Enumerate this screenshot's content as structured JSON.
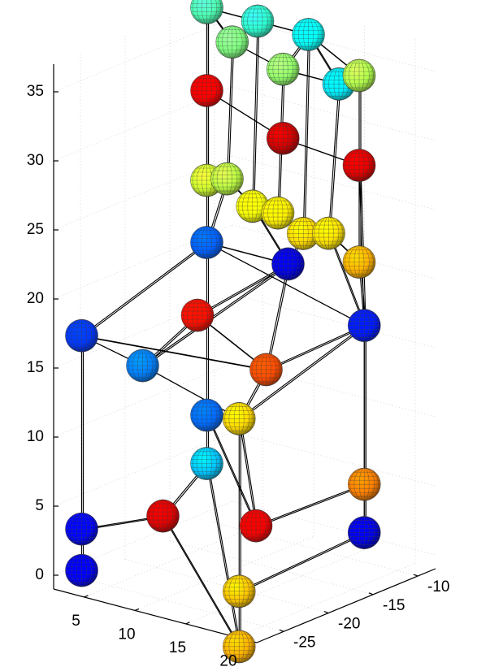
{
  "chart_data": {
    "type": "scatter3d",
    "title": "",
    "xlabel": "",
    "ylabel": "",
    "zlabel": "",
    "xlim": [
      2,
      22
    ],
    "ylim": [
      -28,
      -8
    ],
    "zlim": [
      -1,
      37
    ],
    "x_ticks": [
      "5",
      "10",
      "15",
      "20"
    ],
    "y_ticks": [
      "-25",
      "-20",
      "-15",
      "-10"
    ],
    "z_ticks": [
      "0",
      "5",
      "10",
      "15",
      "20",
      "25",
      "30",
      "35"
    ],
    "grid": true,
    "colormap": "jet",
    "marker": "sphere",
    "points": [
      {
        "x": 3,
        "y": -26,
        "z": 0,
        "c": 0.12
      },
      {
        "x": 3,
        "y": -26,
        "z": 3,
        "c": 0.13
      },
      {
        "x": 3,
        "y": -26,
        "z": 17,
        "c": 0.18
      },
      {
        "x": 11,
        "y": -26,
        "z": 5.5,
        "c": 0.9
      },
      {
        "x": 18.5,
        "y": -26,
        "z": -2.5,
        "c": 0.7
      },
      {
        "x": 18.5,
        "y": -26,
        "z": 1.5,
        "c": 0.68
      },
      {
        "x": 18.5,
        "y": -26,
        "z": 14,
        "c": 0.66
      },
      {
        "x": 9,
        "y": -26,
        "z": 16,
        "c": 0.25
      },
      {
        "x": 10,
        "y": -21,
        "z": 18.5,
        "c": 0.86
      },
      {
        "x": 3,
        "y": -12,
        "z": 20,
        "c": 0.22
      },
      {
        "x": 3,
        "y": -12,
        "z": 7.5,
        "c": 0.23
      },
      {
        "x": 3,
        "y": -12,
        "z": 4,
        "c": 0.32
      },
      {
        "x": 18.5,
        "y": -12,
        "z": 2,
        "c": 0.1
      },
      {
        "x": 18.5,
        "y": -12,
        "z": 5.5,
        "c": 0.75
      },
      {
        "x": 18.5,
        "y": -12,
        "z": 17,
        "c": 0.15
      },
      {
        "x": 15,
        "y": -19,
        "z": 15,
        "c": 0.8
      },
      {
        "x": 11,
        "y": -12,
        "z": 20,
        "c": 0.1
      },
      {
        "x": 14,
        "y": -19,
        "z": 3.5,
        "c": 0.88
      },
      {
        "x": 3,
        "y": -12,
        "z": 37,
        "c": 0.45
      },
      {
        "x": 8,
        "y": -12,
        "z": 37,
        "c": 0.42
      },
      {
        "x": 13,
        "y": -12,
        "z": 37,
        "c": 0.38
      },
      {
        "x": 18,
        "y": -12,
        "z": 35,
        "c": 0.55
      },
      {
        "x": 5.5,
        "y": -12,
        "z": 35,
        "c": 0.5
      },
      {
        "x": 10.5,
        "y": -12,
        "z": 34,
        "c": 0.52
      },
      {
        "x": 16,
        "y": -12,
        "z": 34,
        "c": 0.36
      },
      {
        "x": 3,
        "y": -12,
        "z": 31,
        "c": 0.88
      },
      {
        "x": 10.5,
        "y": -12,
        "z": 29,
        "c": 0.92
      },
      {
        "x": 18,
        "y": -12,
        "z": 28.5,
        "c": 0.9
      },
      {
        "x": 3,
        "y": -12,
        "z": 24.5,
        "c": 0.58
      },
      {
        "x": 5,
        "y": -12,
        "z": 25,
        "c": 0.56
      },
      {
        "x": 7.5,
        "y": -12,
        "z": 23.5,
        "c": 0.62
      },
      {
        "x": 10,
        "y": -12,
        "z": 23.5,
        "c": 0.64
      },
      {
        "x": 12.5,
        "y": -12,
        "z": 22.5,
        "c": 0.66
      },
      {
        "x": 15,
        "y": -12,
        "z": 23,
        "c": 0.65
      },
      {
        "x": 18,
        "y": -12,
        "z": 21.5,
        "c": 0.7
      }
    ],
    "edges": [
      [
        0,
        2
      ],
      [
        1,
        2
      ],
      [
        3,
        4
      ],
      [
        5,
        6
      ],
      [
        2,
        7
      ],
      [
        7,
        6
      ],
      [
        6,
        14
      ],
      [
        2,
        9
      ],
      [
        9,
        14
      ],
      [
        9,
        18
      ],
      [
        14,
        27
      ],
      [
        1,
        3
      ],
      [
        3,
        11
      ],
      [
        4,
        5
      ],
      [
        5,
        12
      ],
      [
        11,
        10
      ],
      [
        12,
        13
      ],
      [
        13,
        17
      ],
      [
        9,
        10
      ],
      [
        14,
        12
      ],
      [
        14,
        13
      ],
      [
        6,
        15
      ],
      [
        15,
        14
      ],
      [
        7,
        8
      ],
      [
        8,
        16
      ],
      [
        16,
        15
      ],
      [
        16,
        9
      ],
      [
        2,
        15
      ],
      [
        7,
        16
      ],
      [
        8,
        15
      ],
      [
        10,
        6
      ],
      [
        11,
        4
      ],
      [
        17,
        10
      ],
      [
        17,
        6
      ],
      [
        18,
        19
      ],
      [
        19,
        20
      ],
      [
        20,
        21
      ],
      [
        18,
        22
      ],
      [
        22,
        19
      ],
      [
        22,
        23
      ],
      [
        23,
        20
      ],
      [
        23,
        24
      ],
      [
        24,
        21
      ],
      [
        24,
        20
      ],
      [
        18,
        25
      ],
      [
        25,
        28
      ],
      [
        28,
        9
      ],
      [
        21,
        27
      ],
      [
        27,
        34
      ],
      [
        34,
        14
      ],
      [
        22,
        29
      ],
      [
        23,
        31
      ],
      [
        24,
        33
      ],
      [
        19,
        30
      ],
      [
        20,
        32
      ],
      [
        28,
        29
      ],
      [
        29,
        30
      ],
      [
        30,
        31
      ],
      [
        31,
        32
      ],
      [
        32,
        33
      ],
      [
        33,
        34
      ],
      [
        25,
        26
      ],
      [
        26,
        27
      ],
      [
        18,
        28
      ],
      [
        21,
        34
      ],
      [
        16,
        30
      ],
      [
        16,
        32
      ],
      [
        9,
        29
      ],
      [
        14,
        33
      ]
    ]
  }
}
